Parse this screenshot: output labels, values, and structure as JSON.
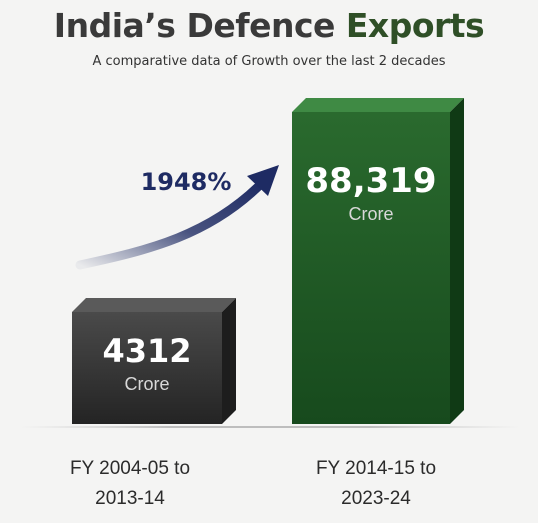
{
  "chart_data": {
    "type": "bar",
    "title": "India’s Defence Exports",
    "title_plain": "India’s Defence ",
    "title_accent": "Exports",
    "subtitle": "A comparative data of Growth over the last 2 decades",
    "categories": [
      {
        "line1": "FY 2004-05 to",
        "line2": "2013-14"
      },
      {
        "line1": "FY 2014-15 to",
        "line2": "2023-24"
      }
    ],
    "values": [
      4312,
      88319
    ],
    "value_labels": [
      "4312",
      "88,319"
    ],
    "unit": "Crore",
    "growth_annotation": "1948%",
    "colors": {
      "bar1": "#3a3a3a",
      "bar2": "#1f5a26",
      "arrow": "#1e2b63",
      "title_accent": "#2f4f27"
    }
  }
}
